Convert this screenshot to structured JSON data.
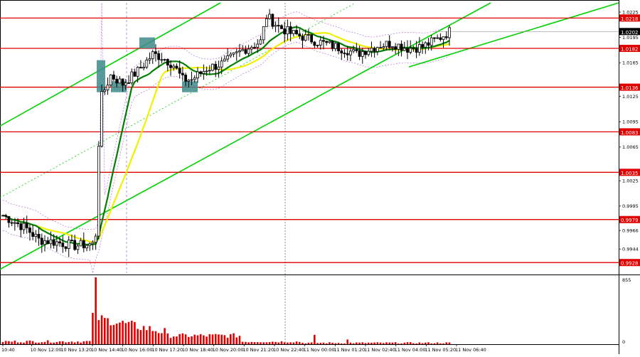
{
  "chart_data": {
    "type": "candlestick",
    "instrument_hint": "",
    "price_range": [
      0.99155,
      1.0236
    ],
    "price_ticks": [
      1.0225,
      1.0195,
      1.0165,
      1.0125,
      1.0095,
      1.0065,
      1.0025,
      0.9995,
      0.9966,
      0.9944
    ],
    "horizontal_levels": [
      {
        "price": 1.0218,
        "label": "1.0218",
        "color": "#e00000"
      },
      {
        "price": 1.0182,
        "label": "1.0182",
        "color": "#e00000"
      },
      {
        "price": 1.0136,
        "label": "1.0136",
        "color": "#e00000"
      },
      {
        "price": 1.0083,
        "label": "1.0083",
        "color": "#e00000"
      },
      {
        "price": 1.0035,
        "label": "1.0035",
        "color": "#e00000"
      },
      {
        "price": 0.9979,
        "label": "0.9979",
        "color": "#e00000"
      },
      {
        "price": 0.9928,
        "label": "0.9928",
        "color": "#e00000"
      }
    ],
    "current_price": {
      "price": 1.0202,
      "label": "1.0202"
    },
    "time_labels": [
      "10:40",
      "10 Nov 12:00",
      "10 Nov 13:20",
      "10 Nov 14:40",
      "10 Nov 16:00",
      "10 Nov 17:20",
      "10 Nov 18:40",
      "10 Nov 20:00",
      "10 Nov 21:20",
      "10 Nov 22:40",
      "11 Nov 00:00",
      "11 Nov 01:20",
      "11 Nov 02:40",
      "11 Nov 04:00",
      "11 Nov 05:20",
      "11 Nov 06:40"
    ],
    "volume_axis_labels": [
      "855",
      "0"
    ],
    "volume_max": 855,
    "colors": {
      "level": "#e00000",
      "channel": "#00d000",
      "ma_fast": "#008000",
      "ma_slow": "#f0f000",
      "candle": "#000000",
      "volume": "#e00000",
      "marker": "#3e8a8a",
      "envelope": "#c080e0"
    }
  }
}
